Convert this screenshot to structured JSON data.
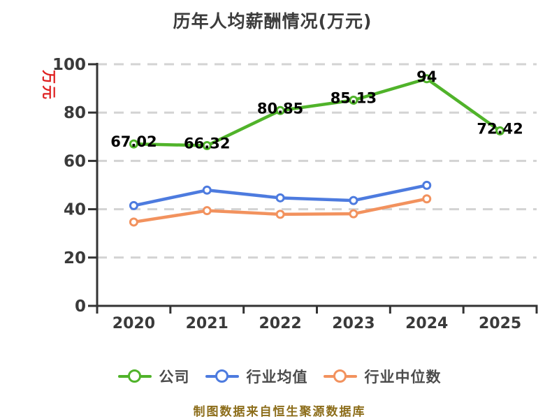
{
  "title": "历年人均薪酬情况(万元)",
  "y_axis_name": "万元",
  "footer_note": "制图数据来自恒生聚源数据库",
  "colors": {
    "title_text": "#3c3c3c",
    "axis_line": "#333333",
    "tick_label": "#3a3a3a",
    "gridline": "#d3d3d3",
    "data_label": "#000000",
    "y_axis_name_text": "#df2020",
    "legend_text": "#4b4b4b",
    "footer_text": "#8c6d1a",
    "marker_fill": "#ffffff"
  },
  "legend": {
    "items": [
      {
        "label": "公司",
        "color": "#50b32a"
      },
      {
        "label": "行业均值",
        "color": "#4d7bdf"
      },
      {
        "label": "行业中位数",
        "color": "#f2925e"
      }
    ]
  },
  "chart_data": {
    "type": "line",
    "title": "历年人均薪酬情况(万元)",
    "xlabel": "",
    "ylabel": "万元",
    "categories": [
      "2020",
      "2021",
      "2022",
      "2023",
      "2024",
      "2025"
    ],
    "series": [
      {
        "name": "公司",
        "color": "#50b32a",
        "values": [
          67.02,
          66.32,
          80.85,
          85.13,
          94,
          72.42
        ],
        "labels": [
          "67.02",
          "66.32",
          "80.85",
          "85.13",
          "94",
          "72.42"
        ],
        "show_labels": true
      },
      {
        "name": "行业均值",
        "color": "#4d7bdf",
        "values": [
          41.5,
          47.9,
          44.7,
          43.6,
          49.9,
          null
        ],
        "labels": [],
        "show_labels": false
      },
      {
        "name": "行业中位数",
        "color": "#f2925e",
        "values": [
          34.7,
          39.4,
          37.9,
          38.1,
          44.3,
          null
        ],
        "labels": [],
        "show_labels": false
      }
    ],
    "ylim": [
      0,
      100
    ],
    "y_ticks": [
      0,
      20,
      40,
      60,
      80,
      100
    ],
    "grid": "horizontal dashed",
    "legend_position": "bottom"
  }
}
